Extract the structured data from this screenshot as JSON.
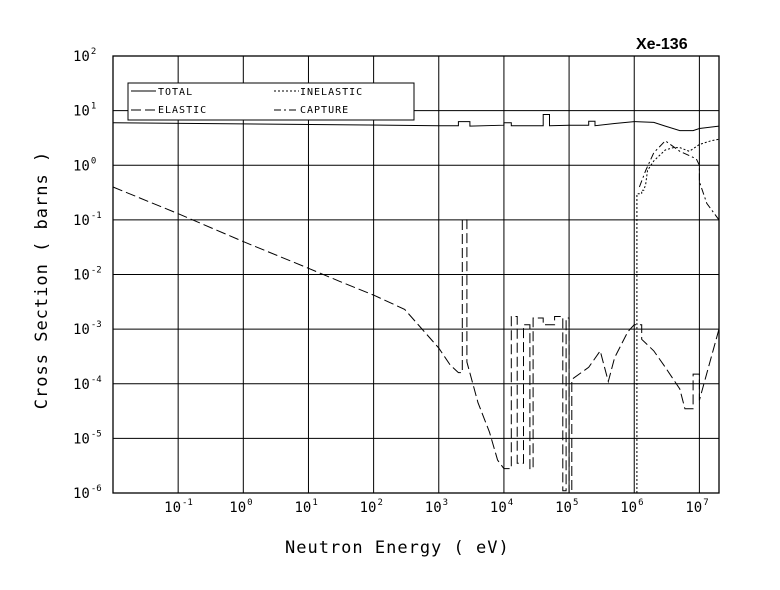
{
  "chart_data": {
    "type": "line",
    "title": "Xe-136",
    "xlabel": "Neutron Energy ( eV)",
    "ylabel": "Cross Section ( barns )",
    "x_scale": "log",
    "y_scale": "log",
    "xlim": [
      0.01,
      20000000
    ],
    "ylim": [
      1e-06,
      100
    ],
    "grid": true,
    "legend_position": "top-left",
    "x_ticks": [
      {
        "base": "10",
        "exp": "-1",
        "value": 0.1
      },
      {
        "base": "10",
        "exp": "0",
        "value": 1
      },
      {
        "base": "10",
        "exp": "1",
        "value": 10
      },
      {
        "base": "10",
        "exp": "2",
        "value": 100
      },
      {
        "base": "10",
        "exp": "3",
        "value": 1000
      },
      {
        "base": "10",
        "exp": "4",
        "value": 10000
      },
      {
        "base": "10",
        "exp": "5",
        "value": 100000
      },
      {
        "base": "10",
        "exp": "6",
        "value": 1000000
      },
      {
        "base": "10",
        "exp": "7",
        "value": 10000000
      }
    ],
    "y_ticks": [
      {
        "base": "10",
        "exp": "2",
        "value": 100
      },
      {
        "base": "10",
        "exp": "1",
        "value": 10
      },
      {
        "base": "10",
        "exp": "0",
        "value": 1
      },
      {
        "base": "10",
        "exp": "-1",
        "value": 0.1
      },
      {
        "base": "10",
        "exp": "-2",
        "value": 0.01
      },
      {
        "base": "10",
        "exp": "-3",
        "value": 0.001
      },
      {
        "base": "10",
        "exp": "-4",
        "value": 0.0001
      },
      {
        "base": "10",
        "exp": "-5",
        "value": 1e-05
      },
      {
        "base": "10",
        "exp": "-6",
        "value": 1e-06
      }
    ],
    "series": [
      {
        "name": "TOTAL",
        "dash": "solid",
        "points": [
          [
            0.01,
            6.0
          ],
          [
            1000,
            5.3
          ],
          [
            2000,
            5.3
          ],
          [
            2000,
            6.3
          ],
          [
            3000,
            6.3
          ],
          [
            3000,
            5.2
          ],
          [
            10000,
            5.4
          ],
          [
            10000,
            6.0
          ],
          [
            13000,
            6.0
          ],
          [
            13000,
            5.3
          ],
          [
            40000,
            5.3
          ],
          [
            40000,
            8.5
          ],
          [
            50000,
            8.5
          ],
          [
            50000,
            5.3
          ],
          [
            100000,
            5.4
          ],
          [
            200000,
            5.4
          ],
          [
            200000,
            6.4
          ],
          [
            250000,
            6.4
          ],
          [
            250000,
            5.3
          ],
          [
            500000,
            5.8
          ],
          [
            1000000,
            6.3
          ],
          [
            2000000,
            6.1
          ],
          [
            3000000,
            5.2
          ],
          [
            5000000,
            4.3
          ],
          [
            8000000,
            4.3
          ],
          [
            10000000,
            4.7
          ],
          [
            20000000,
            5.2
          ]
        ]
      },
      {
        "name": "ELASTIC",
        "dash": "long-dash",
        "points": [
          [
            0.01,
            0.4
          ],
          [
            0.1,
            0.13
          ],
          [
            1,
            0.04
          ],
          [
            10,
            0.013
          ],
          [
            30,
            0.0075
          ],
          [
            100,
            0.0042
          ],
          [
            300,
            0.0023
          ],
          [
            1000,
            0.00045
          ],
          [
            1500,
            0.00022
          ],
          [
            2000,
            0.00016
          ],
          [
            2300,
            0.00016
          ],
          [
            2300,
            0.1
          ],
          [
            2700,
            0.1
          ],
          [
            2700,
            0.00025
          ],
          [
            4000,
            4.5e-05
          ],
          [
            6000,
            1.3e-05
          ],
          [
            8000,
            4e-06
          ],
          [
            10000,
            2.8e-06
          ],
          [
            13000,
            2.8e-06
          ],
          [
            13000,
            0.0017
          ],
          [
            16000,
            0.0017
          ],
          [
            16000,
            3.5e-06
          ],
          [
            20000,
            3.5e-06
          ],
          [
            20000,
            0.0012
          ],
          [
            25000,
            0.0012
          ],
          [
            25000,
            2.8e-06
          ],
          [
            28000,
            2.8e-06
          ],
          [
            28000,
            0.0016
          ],
          [
            40000,
            0.0016
          ],
          [
            40000,
            0.0012
          ],
          [
            60000,
            0.0012
          ],
          [
            60000,
            0.0017
          ],
          [
            80000,
            0.0017
          ],
          [
            80000,
            1.1e-06
          ],
          [
            90000,
            1.1e-06
          ],
          [
            90000,
            0.0016
          ],
          [
            100000,
            0.0016
          ],
          [
            100000,
            1e-06
          ],
          [
            110000,
            1e-06
          ],
          [
            110000,
            0.00012
          ],
          [
            200000,
            0.0002
          ],
          [
            300000,
            0.0004
          ],
          [
            400000,
            0.00011
          ],
          [
            500000,
            0.0003
          ],
          [
            800000,
            0.0009
          ],
          [
            1000000,
            0.0012
          ],
          [
            1300000,
            0.0012
          ],
          [
            1300000,
            0.00065
          ],
          [
            2000000,
            0.0004
          ],
          [
            3000000,
            0.0002
          ],
          [
            5000000,
            8e-05
          ],
          [
            6000000,
            3.5e-05
          ],
          [
            8000000,
            3.5e-05
          ],
          [
            8000000,
            0.00015
          ],
          [
            10000000,
            0.00015
          ],
          [
            10000000,
            5e-05
          ],
          [
            20000000,
            0.001
          ]
        ]
      },
      {
        "name": "INELASTIC",
        "dash": "dotted",
        "points": [
          [
            1100000,
            1e-06
          ],
          [
            1100000,
            0.3
          ],
          [
            1300000,
            0.3
          ],
          [
            1300000,
            0.35
          ],
          [
            1400000,
            0.35
          ],
          [
            1500000,
            0.45
          ],
          [
            1600000,
            0.8
          ],
          [
            2000000,
            1.2
          ],
          [
            3000000,
            1.9
          ],
          [
            4000000,
            2.1
          ],
          [
            5000000,
            2.1
          ],
          [
            7000000,
            1.8
          ],
          [
            10000000,
            2.4
          ],
          [
            15000000,
            2.8
          ],
          [
            20000000,
            3.0
          ]
        ]
      },
      {
        "name": "CAPTURE",
        "dash": "dash-dot",
        "points": [
          [
            1200000,
            0.4
          ],
          [
            1500000,
            0.8
          ],
          [
            2000000,
            1.7
          ],
          [
            3000000,
            2.8
          ],
          [
            5000000,
            1.8
          ],
          [
            7000000,
            1.5
          ],
          [
            9000000,
            1.3
          ],
          [
            10000000,
            1.0
          ],
          [
            10000000,
            0.5
          ],
          [
            13000000,
            0.2
          ],
          [
            20000000,
            0.1
          ]
        ]
      }
    ]
  }
}
